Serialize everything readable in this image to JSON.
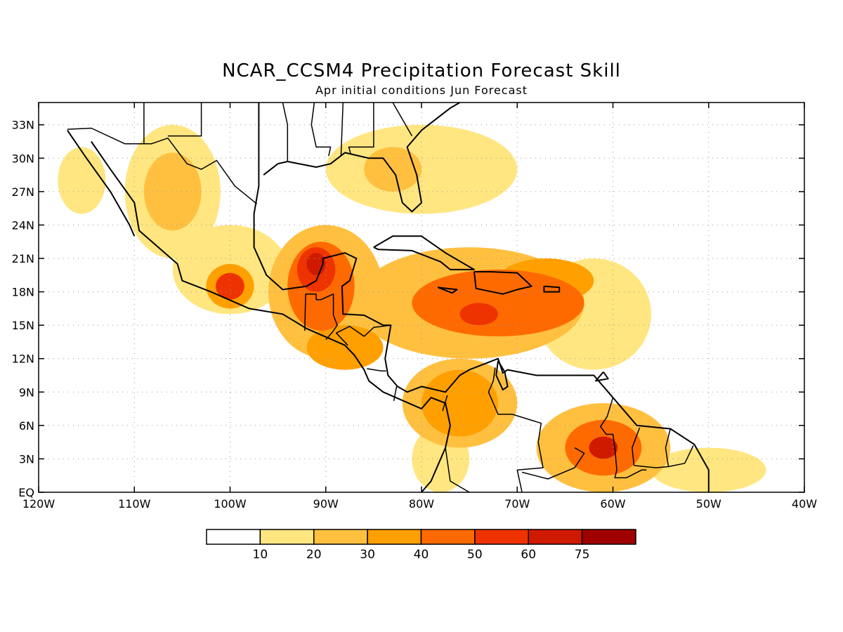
{
  "title": "NCAR_CCSM4 Precipitation Forecast Skill",
  "subtitle": "Apr initial conditions   Jun Forecast",
  "map": {
    "lon_range": [
      -120,
      -40
    ],
    "lat_range": [
      0,
      35
    ],
    "lon_ticks": [
      {
        "value": -120,
        "label": "120W"
      },
      {
        "value": -110,
        "label": "110W"
      },
      {
        "value": -100,
        "label": "100W"
      },
      {
        "value": -90,
        "label": "90W"
      },
      {
        "value": -80,
        "label": "80W"
      },
      {
        "value": -70,
        "label": "70W"
      },
      {
        "value": -60,
        "label": "60W"
      },
      {
        "value": -50,
        "label": "50W"
      },
      {
        "value": -40,
        "label": "40W"
      }
    ],
    "lat_ticks": [
      {
        "value": 0,
        "label": "EQ"
      },
      {
        "value": 3,
        "label": "3N"
      },
      {
        "value": 6,
        "label": "6N"
      },
      {
        "value": 9,
        "label": "9N"
      },
      {
        "value": 12,
        "label": "12N"
      },
      {
        "value": 15,
        "label": "15N"
      },
      {
        "value": 18,
        "label": "18N"
      },
      {
        "value": 21,
        "label": "21N"
      },
      {
        "value": 24,
        "label": "24N"
      },
      {
        "value": 27,
        "label": "27N"
      },
      {
        "value": 30,
        "label": "30N"
      },
      {
        "value": 33,
        "label": "33N"
      }
    ],
    "grid": true
  },
  "colorbar": {
    "colors": [
      "#ffffff",
      "#ffe680",
      "#ffc040",
      "#ffa000",
      "#ff6a00",
      "#ee3300",
      "#d01a00",
      "#a00000"
    ],
    "labels": [
      "10",
      "20",
      "30",
      "40",
      "50",
      "60",
      "75"
    ]
  },
  "skill_regions": [
    {
      "level": 1,
      "center": [
        -115.5,
        28
      ],
      "radius": [
        2.5,
        3
      ]
    },
    {
      "level": 1,
      "center": [
        -106,
        27
      ],
      "radius": [
        5,
        6
      ]
    },
    {
      "level": 2,
      "center": [
        -106,
        27
      ],
      "radius": [
        3,
        3.5
      ]
    },
    {
      "level": 1,
      "center": [
        -100,
        20
      ],
      "radius": [
        6,
        4
      ]
    },
    {
      "level": 3,
      "center": [
        -100,
        18.5
      ],
      "radius": [
        2.5,
        2
      ]
    },
    {
      "level": 5,
      "center": [
        -100,
        18.5
      ],
      "radius": [
        1.5,
        1.2
      ]
    },
    {
      "level": 2,
      "center": [
        -90,
        18
      ],
      "radius": [
        6,
        6
      ]
    },
    {
      "level": 4,
      "center": [
        -90.5,
        18.5
      ],
      "radius": [
        3.5,
        4
      ]
    },
    {
      "level": 5,
      "center": [
        -91,
        20
      ],
      "radius": [
        2,
        2
      ]
    },
    {
      "level": 6,
      "center": [
        -91,
        20.5
      ],
      "radius": [
        1,
        1
      ]
    },
    {
      "level": 3,
      "center": [
        -88,
        13
      ],
      "radius": [
        4,
        2
      ]
    },
    {
      "level": 2,
      "center": [
        -75,
        17
      ],
      "radius": [
        12,
        5
      ]
    },
    {
      "level": 4,
      "center": [
        -72,
        17
      ],
      "radius": [
        9,
        3
      ]
    },
    {
      "level": 5,
      "center": [
        -74,
        16
      ],
      "radius": [
        2,
        1
      ]
    },
    {
      "level": 1,
      "center": [
        -62,
        16
      ],
      "radius": [
        6,
        5
      ]
    },
    {
      "level": 3,
      "center": [
        -67,
        19
      ],
      "radius": [
        5,
        2
      ]
    },
    {
      "level": 1,
      "center": [
        -80,
        29
      ],
      "radius": [
        10,
        4
      ]
    },
    {
      "level": 2,
      "center": [
        -83,
        29
      ],
      "radius": [
        3,
        2
      ]
    },
    {
      "level": 3,
      "center": [
        -76,
        8
      ],
      "radius": [
        4,
        3
      ]
    },
    {
      "level": 2,
      "center": [
        -76,
        8
      ],
      "radius": [
        6,
        4
      ]
    },
    {
      "level": 2,
      "center": [
        -61,
        4
      ],
      "radius": [
        7,
        4
      ]
    },
    {
      "level": 4,
      "center": [
        -61,
        4
      ],
      "radius": [
        4,
        2.5
      ]
    },
    {
      "level": 6,
      "center": [
        -61,
        4
      ],
      "radius": [
        1.5,
        1
      ]
    },
    {
      "level": 1,
      "center": [
        -50,
        2
      ],
      "radius": [
        6,
        2
      ]
    },
    {
      "level": 1,
      "center": [
        -78,
        3
      ],
      "radius": [
        3,
        3
      ]
    }
  ],
  "land_outlines": [
    [
      [
        -117,
        32.5
      ],
      [
        -115,
        30
      ],
      [
        -112.5,
        27
      ],
      [
        -110.5,
        24
      ],
      [
        -110,
        23
      ]
    ],
    [
      [
        -114.5,
        31.5
      ],
      [
        -112.5,
        29
      ],
      [
        -110,
        26
      ],
      [
        -109.5,
        23.5
      ],
      [
        -105.5,
        20.5
      ],
      [
        -105,
        19
      ],
      [
        -102,
        18
      ],
      [
        -98,
        16.5
      ],
      [
        -94.5,
        16
      ],
      [
        -92,
        14.7
      ],
      [
        -88,
        13.2
      ],
      [
        -87,
        12.3
      ],
      [
        -86,
        11
      ],
      [
        -85.5,
        10
      ],
      [
        -84,
        9
      ],
      [
        -80,
        7.5
      ],
      [
        -79,
        8.5
      ],
      [
        -77.5,
        8
      ],
      [
        -77,
        6
      ],
      [
        -77.5,
        4
      ],
      [
        -78.5,
        2
      ],
      [
        -79,
        1
      ],
      [
        -80,
        0
      ]
    ],
    [
      [
        -97,
        35
      ],
      [
        -97,
        27.5
      ],
      [
        -97.5,
        25
      ],
      [
        -97.5,
        22
      ],
      [
        -96.2,
        19.5
      ],
      [
        -94.5,
        18.2
      ],
      [
        -92,
        18.5
      ],
      [
        -91,
        19
      ],
      [
        -90.3,
        20.5
      ],
      [
        -90.3,
        21
      ],
      [
        -88,
        21.5
      ],
      [
        -86.8,
        21
      ],
      [
        -87.5,
        19
      ],
      [
        -88.3,
        18.5
      ],
      [
        -88.2,
        16
      ],
      [
        -86,
        15.9
      ],
      [
        -84,
        15
      ],
      [
        -83.2,
        15
      ],
      [
        -83.8,
        12
      ],
      [
        -83.5,
        10.5
      ],
      [
        -82.5,
        9.5
      ],
      [
        -81.5,
        9
      ],
      [
        -80,
        9.5
      ],
      [
        -77.5,
        9
      ],
      [
        -76,
        10.5
      ],
      [
        -75,
        11
      ],
      [
        -72,
        12
      ],
      [
        -71.5,
        10.7
      ],
      [
        -71,
        11
      ],
      [
        -68,
        10.5
      ],
      [
        -64,
        10.5
      ],
      [
        -62,
        10.5
      ],
      [
        -60,
        8.5
      ],
      [
        -57.5,
        6
      ],
      [
        -54,
        5.7
      ],
      [
        -51.5,
        4.3
      ],
      [
        -50,
        2
      ],
      [
        -50,
        0
      ]
    ],
    [
      [
        -96.5,
        28.5
      ],
      [
        -95,
        29.5
      ],
      [
        -94,
        29.7
      ],
      [
        -91,
        29.2
      ],
      [
        -89.5,
        29.5
      ],
      [
        -88,
        30.5
      ],
      [
        -85.5,
        30
      ],
      [
        -84,
        30
      ],
      [
        -82.7,
        28.5
      ],
      [
        -82,
        26
      ],
      [
        -81,
        25.2
      ],
      [
        -80,
        26
      ],
      [
        -80.5,
        28.5
      ],
      [
        -81.5,
        31
      ],
      [
        -80,
        32.5
      ],
      [
        -77,
        34.5
      ],
      [
        -76,
        35
      ]
    ],
    [
      [
        -85,
        22
      ],
      [
        -83,
        23
      ],
      [
        -80,
        23
      ],
      [
        -77.5,
        21.5
      ],
      [
        -74.5,
        20
      ],
      [
        -77,
        20
      ],
      [
        -78,
        20.7
      ],
      [
        -81,
        21.7
      ],
      [
        -84.5,
        21.8
      ],
      [
        -85,
        22
      ]
    ],
    [
      [
        -74.5,
        19.8
      ],
      [
        -72.8,
        19.8
      ],
      [
        -70,
        19.7
      ],
      [
        -68.5,
        18.5
      ],
      [
        -70,
        18.2
      ],
      [
        -71.5,
        17.8
      ],
      [
        -74.3,
        18.3
      ],
      [
        -74.5,
        19.8
      ]
    ],
    [
      [
        -78.3,
        18.4
      ],
      [
        -76.3,
        18.2
      ],
      [
        -76.8,
        17.9
      ],
      [
        -78.3,
        18.4
      ]
    ],
    [
      [
        -67.2,
        18.5
      ],
      [
        -65.6,
        18.4
      ],
      [
        -65.6,
        18
      ],
      [
        -67.2,
        18
      ],
      [
        -67.2,
        18.5
      ]
    ],
    [
      [
        -61,
        10.8
      ],
      [
        -60.5,
        10.2
      ],
      [
        -61.8,
        10
      ],
      [
        -61,
        10.8
      ]
    ],
    [
      [
        -72,
        11.8
      ],
      [
        -72.2,
        10.5
      ],
      [
        -71.5,
        9.2
      ],
      [
        -71,
        9.5
      ],
      [
        -71.3,
        10.8
      ],
      [
        -72,
        11.8
      ]
    ]
  ],
  "borders": [
    [
      [
        -117,
        32.6
      ],
      [
        -114.5,
        32.7
      ],
      [
        -111,
        31.3
      ],
      [
        -108.2,
        31.3
      ],
      [
        -106.5,
        31.8
      ],
      [
        -104.5,
        29.5
      ],
      [
        -103,
        29
      ],
      [
        -101.4,
        29.8
      ],
      [
        -99.5,
        27.5
      ],
      [
        -97.2,
        25.9
      ]
    ],
    [
      [
        -109,
        35
      ],
      [
        -109,
        31.3
      ]
    ],
    [
      [
        -103,
        35
      ],
      [
        -103,
        32
      ],
      [
        -106.5,
        32
      ]
    ],
    [
      [
        -94.5,
        35
      ],
      [
        -94,
        33
      ],
      [
        -94,
        29.7
      ]
    ],
    [
      [
        -91.2,
        35
      ],
      [
        -91.5,
        33
      ],
      [
        -91,
        31
      ],
      [
        -89.5,
        31
      ],
      [
        -89.7,
        30.2
      ]
    ],
    [
      [
        -88.2,
        35
      ],
      [
        -88.4,
        30.3
      ]
    ],
    [
      [
        -85,
        35
      ],
      [
        -85,
        31
      ],
      [
        -87.6,
        31
      ],
      [
        -87.4,
        30.4
      ]
    ],
    [
      [
        -83,
        35
      ],
      [
        -81,
        32
      ]
    ],
    [
      [
        -92.2,
        14.5
      ],
      [
        -92.1,
        17.8
      ],
      [
        -91,
        17.8
      ],
      [
        -91,
        17.3
      ],
      [
        -90.5,
        17.3
      ],
      [
        -89.2,
        17.8
      ],
      [
        -89.2,
        15.9
      ]
    ],
    [
      [
        -89.2,
        15.9
      ],
      [
        -88.8,
        15
      ],
      [
        -89.3,
        14.4
      ],
      [
        -90,
        13.7
      ]
    ],
    [
      [
        -87.7,
        13.2
      ],
      [
        -88.9,
        14.3
      ],
      [
        -87.5,
        14.9
      ],
      [
        -86,
        14
      ],
      [
        -85,
        14.8
      ],
      [
        -83.2,
        15
      ]
    ],
    [
      [
        -85.7,
        11.1
      ],
      [
        -84.2,
        10.9
      ],
      [
        -83.7,
        10.9
      ]
    ],
    [
      [
        -82.9,
        8.2
      ],
      [
        -82.6,
        9.5
      ]
    ],
    [
      [
        -77.3,
        8.7
      ],
      [
        -77.8,
        7.3
      ]
    ],
    [
      [
        -72.3,
        11.2
      ],
      [
        -72.5,
        10
      ],
      [
        -73,
        9
      ],
      [
        -72,
        7
      ],
      [
        -70.5,
        7
      ],
      [
        -67.5,
        6.2
      ],
      [
        -67.8,
        4.5
      ],
      [
        -67.3,
        2.2
      ],
      [
        -70,
        2
      ],
      [
        -69.5,
        0
      ]
    ],
    [
      [
        -60,
        8.5
      ],
      [
        -60.6,
        6.8
      ],
      [
        -61.3,
        5.9
      ],
      [
        -60.7,
        5.2
      ],
      [
        -60,
        5.2
      ],
      [
        -59.8,
        4
      ],
      [
        -59.6,
        2
      ],
      [
        -59.8,
        1.3
      ],
      [
        -58.6,
        1.3
      ],
      [
        -57,
        2
      ],
      [
        -56.5,
        2
      ]
    ],
    [
      [
        -64,
        4
      ],
      [
        -63,
        3.5
      ],
      [
        -64,
        2.2
      ],
      [
        -66.8,
        1.2
      ],
      [
        -69.5,
        1.8
      ]
    ],
    [
      [
        -57.2,
        5.8
      ],
      [
        -58,
        4
      ],
      [
        -57.8,
        2.4
      ]
    ],
    [
      [
        -54,
        5.7
      ],
      [
        -54.5,
        4
      ],
      [
        -54.2,
        2.3
      ],
      [
        -55.5,
        2.2
      ],
      [
        -57.8,
        2.4
      ]
    ],
    [
      [
        -51.6,
        4.2
      ],
      [
        -52.5,
        2.6
      ],
      [
        -54.2,
        2.3
      ]
    ],
    [
      [
        -77.5,
        4
      ],
      [
        -77,
        1
      ],
      [
        -75,
        0
      ]
    ]
  ]
}
